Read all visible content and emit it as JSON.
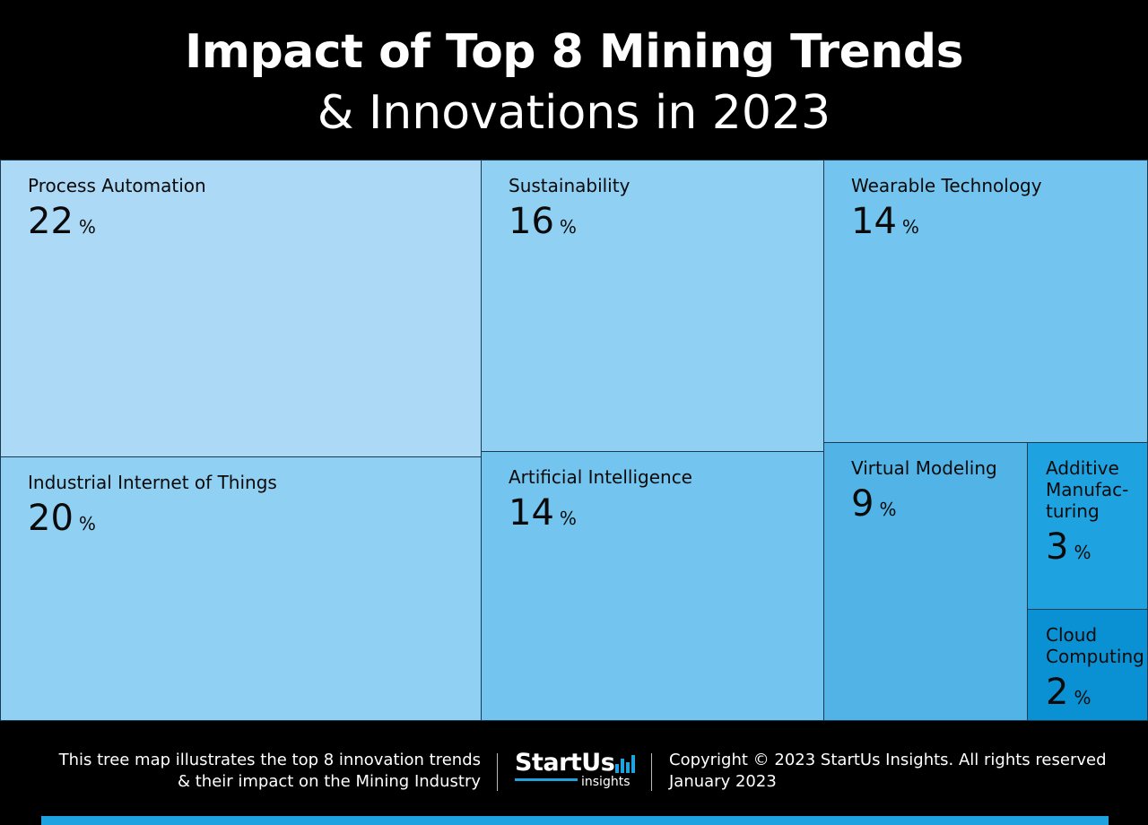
{
  "header": {
    "title_line1": "Impact of Top 8 Mining Trends",
    "title_line2": "& Innovations in 2023"
  },
  "chart_data": {
    "type": "treemap",
    "unit": "%",
    "items": [
      {
        "label": "Process Automation",
        "value": 22,
        "color": "#acdaf6"
      },
      {
        "label": "Industrial Internet of Things",
        "value": 20,
        "color": "#90d0f2"
      },
      {
        "label": "Sustainability",
        "value": 16,
        "color": "#90d0f2"
      },
      {
        "label": "Artificial Intelligence",
        "value": 14,
        "color": "#73c4ee"
      },
      {
        "label": "Wearable Technology",
        "value": 14,
        "color": "#73c4ee"
      },
      {
        "label": "Virtual Modeling",
        "value": 9,
        "color": "#51b3e6"
      },
      {
        "label": "Additive Manufac-turing",
        "value": 3,
        "color": "#1fa3e0"
      },
      {
        "label": "Cloud Computing",
        "value": 2,
        "color": "#0a91d3"
      }
    ]
  },
  "footer": {
    "left_line1": "This tree map illustrates the top 8 innovation trends",
    "left_line2": "& their impact on the Mining Industry",
    "logo_main": "StartUs",
    "logo_sub": "insights",
    "copyright": "Copyright © 2023 StartUs Insights. All rights reserved",
    "date": "January 2023",
    "accent_color": "#1fa3e0"
  }
}
